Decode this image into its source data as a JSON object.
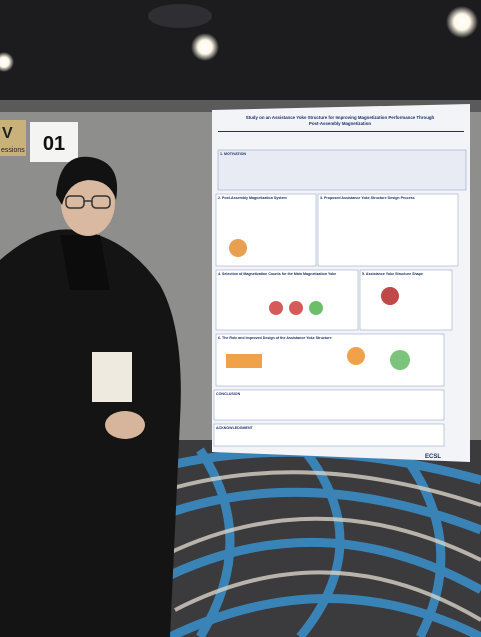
{
  "sign": {
    "number": "01",
    "partial_letter": "V",
    "partial_word": "essions"
  },
  "poster": {
    "title_lines": [
      "Study on an Assistance Yoke Structure for Improving Magnetization Performance Through",
      "Post-Assembly Magnetization"
    ],
    "sections": [
      "1. MOTIVATION",
      "2. Post-Assembly Magnetization System",
      "3. Proposed Assistance Yoke Structure Design Process",
      "4. Selection of Magnetization Counts for the Main Magnetization Yoke",
      "5. Assistance Yoke Structure Shape",
      "6. The Role and Improved Design of the Assistance Yoke Structure",
      "CONCLUSION",
      "ACKNOWLEDGMENT"
    ],
    "footer_logo": "ECSL"
  }
}
